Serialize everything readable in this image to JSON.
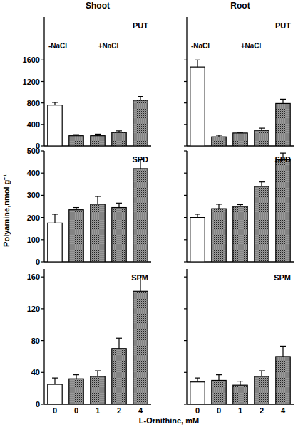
{
  "chart_data": [
    {
      "type": "bar",
      "subtitle": "Shoot",
      "title": "PUT",
      "annotations": [
        "-NaCl",
        "+NaCl"
      ],
      "categories": [
        "0",
        "0",
        "1",
        "2",
        "4"
      ],
      "values": [
        760,
        190,
        190,
        250,
        850
      ],
      "errors": [
        50,
        20,
        30,
        30,
        70
      ],
      "colors": [
        "#ffffff",
        "#9a9a9a",
        "#9a9a9a",
        "#9a9a9a",
        "#9a9a9a"
      ],
      "ylim": [
        0,
        2400
      ],
      "yticks": [
        0,
        400,
        800,
        1200,
        1600
      ],
      "tick_labels": "y"
    },
    {
      "type": "bar",
      "subtitle": "Root",
      "title": "PUT",
      "annotations": [
        "-NaCl",
        "+NaCl"
      ],
      "categories": [
        "0",
        "0",
        "1",
        "2",
        "4"
      ],
      "values": [
        1470,
        170,
        240,
        290,
        790
      ],
      "errors": [
        130,
        30,
        10,
        40,
        80
      ],
      "colors": [
        "#ffffff",
        "#9a9a9a",
        "#9a9a9a",
        "#9a9a9a",
        "#9a9a9a"
      ],
      "ylim": [
        0,
        2400
      ],
      "yticks": [
        0,
        400,
        800,
        1200,
        1600
      ],
      "tick_labels": false
    },
    {
      "type": "bar",
      "title": "SPD",
      "y_label": "Polyamine,nmol g⁻¹",
      "categories": [
        "0",
        "0",
        "1",
        "2",
        "4"
      ],
      "values": [
        175,
        235,
        260,
        245,
        420
      ],
      "errors": [
        40,
        10,
        35,
        20,
        40
      ],
      "colors": [
        "#ffffff",
        "#9a9a9a",
        "#9a9a9a",
        "#9a9a9a",
        "#9a9a9a"
      ],
      "ylim": [
        0,
        500
      ],
      "yticks": [
        0,
        100,
        200,
        300,
        400,
        500
      ],
      "tick_labels": "y"
    },
    {
      "type": "bar",
      "title": "SPD",
      "categories": [
        "0",
        "0",
        "1",
        "2",
        "4"
      ],
      "values": [
        200,
        240,
        250,
        340,
        460
      ],
      "errors": [
        15,
        20,
        8,
        20,
        30
      ],
      "colors": [
        "#ffffff",
        "#9a9a9a",
        "#9a9a9a",
        "#9a9a9a",
        "#9a9a9a"
      ],
      "ylim": [
        0,
        500
      ],
      "yticks": [
        0,
        100,
        200,
        300,
        400,
        500
      ],
      "tick_labels": false
    },
    {
      "type": "bar",
      "title": "SPM",
      "x_label": "L-Ornithine, mM",
      "categories": [
        "0",
        "0",
        "1",
        "2",
        "4"
      ],
      "values": [
        25,
        32,
        35,
        70,
        142
      ],
      "errors": [
        8,
        5,
        7,
        13,
        20
      ],
      "colors": [
        "#ffffff",
        "#9a9a9a",
        "#9a9a9a",
        "#9a9a9a",
        "#9a9a9a"
      ],
      "ylim": [
        0,
        170
      ],
      "yticks": [
        0,
        40,
        80,
        120,
        160
      ],
      "tick_labels": true
    },
    {
      "type": "bar",
      "title": "SPM",
      "categories": [
        "0",
        "0",
        "1",
        "2",
        "4"
      ],
      "values": [
        28,
        30,
        24,
        35,
        60
      ],
      "errors": [
        5,
        7,
        5,
        7,
        13
      ],
      "colors": [
        "#ffffff",
        "#9a9a9a",
        "#9a9a9a",
        "#9a9a9a",
        "#9a9a9a"
      ],
      "ylim": [
        0,
        170
      ],
      "yticks": [
        0,
        40,
        80,
        120,
        160
      ],
      "tick_labels": "x"
    }
  ]
}
